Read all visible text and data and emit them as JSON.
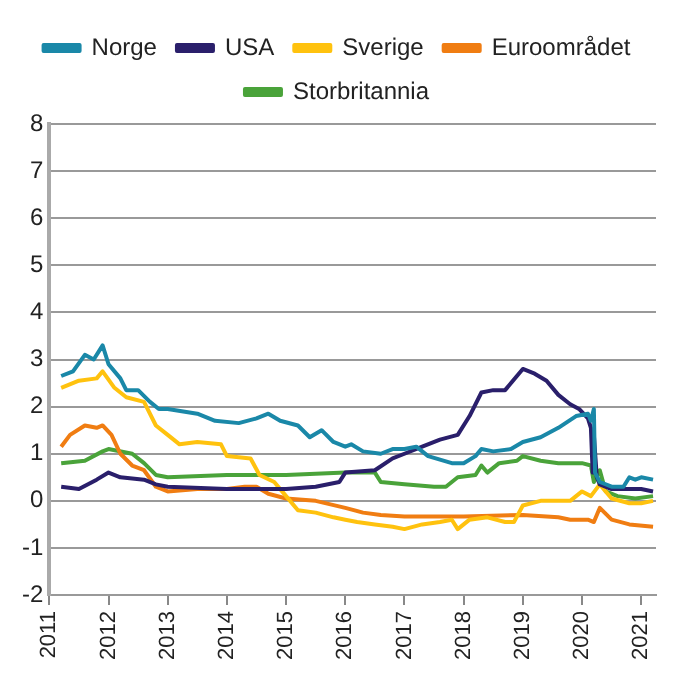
{
  "chart_data": {
    "type": "line",
    "xlim": [
      2011,
      2021.25
    ],
    "xticks": [
      2011,
      2012,
      2013,
      2014,
      2015,
      2016,
      2017,
      2018,
      2019,
      2020,
      2021
    ],
    "ylim": [
      -2,
      8
    ],
    "yticks": [
      -2,
      -1,
      0,
      1,
      2,
      3,
      4,
      5,
      6,
      7,
      8
    ],
    "grid": "y",
    "legend": "top",
    "marker": "none",
    "line_style": "solid",
    "series": [
      {
        "name": "Norge",
        "color": "#1a88a8",
        "x": [
          2011.2,
          2011.4,
          2011.6,
          2011.75,
          2011.9,
          2012.0,
          2012.2,
          2012.3,
          2012.5,
          2012.7,
          2012.85,
          2013,
          2013.5,
          2013.8,
          2014.2,
          2014.5,
          2014.7,
          2014.9,
          2015.2,
          2015.4,
          2015.6,
          2015.8,
          2016,
          2016.1,
          2016.3,
          2016.6,
          2016.8,
          2017,
          2017.2,
          2017.4,
          2017.8,
          2018,
          2018.2,
          2018.3,
          2018.5,
          2018.8,
          2019,
          2019.3,
          2019.6,
          2019.9,
          2020.1,
          2020.15,
          2020.2,
          2020.22,
          2020.3,
          2020.5,
          2020.7,
          2020.8,
          2020.9,
          2021,
          2021.2
        ],
        "values": [
          2.65,
          2.75,
          3.1,
          3.0,
          3.3,
          2.9,
          2.6,
          2.35,
          2.35,
          2.1,
          1.95,
          1.95,
          1.85,
          1.7,
          1.65,
          1.75,
          1.85,
          1.7,
          1.6,
          1.35,
          1.5,
          1.25,
          1.15,
          1.2,
          1.05,
          1.0,
          1.1,
          1.1,
          1.15,
          0.95,
          0.8,
          0.8,
          0.95,
          1.1,
          1.05,
          1.1,
          1.25,
          1.35,
          1.55,
          1.8,
          1.85,
          1.7,
          1.95,
          0.6,
          0.4,
          0.3,
          0.3,
          0.5,
          0.45,
          0.5,
          0.45
        ]
      },
      {
        "name": "USA",
        "color": "#2a1f6b",
        "x": [
          2011.2,
          2011.5,
          2011.8,
          2012,
          2012.2,
          2012.6,
          2012.8,
          2013,
          2014,
          2015,
          2015.5,
          2015.9,
          2016,
          2016.5,
          2016.8,
          2017,
          2017.3,
          2017.6,
          2017.9,
          2018.1,
          2018.3,
          2018.5,
          2018.7,
          2018.9,
          2019,
          2019.2,
          2019.4,
          2019.6,
          2019.8,
          2019.95,
          2020.1,
          2020.15,
          2020.18,
          2020.2,
          2020.25,
          2020.3,
          2020.5,
          2021,
          2021.2
        ],
        "values": [
          0.3,
          0.25,
          0.45,
          0.6,
          0.5,
          0.45,
          0.35,
          0.3,
          0.25,
          0.25,
          0.3,
          0.4,
          0.6,
          0.65,
          0.9,
          1.0,
          1.15,
          1.3,
          1.4,
          1.8,
          2.3,
          2.35,
          2.35,
          2.65,
          2.8,
          2.7,
          2.55,
          2.25,
          2.05,
          1.95,
          1.75,
          1.55,
          0.6,
          1.4,
          0.5,
          0.35,
          0.25,
          0.25,
          0.2
        ]
      },
      {
        "name": "Sverige",
        "color": "#ffc20e",
        "x": [
          2011.2,
          2011.5,
          2011.8,
          2011.9,
          2012.1,
          2012.3,
          2012.6,
          2012.8,
          2013,
          2013.2,
          2013.5,
          2013.9,
          2014,
          2014.4,
          2014.55,
          2014.8,
          2015,
          2015.2,
          2015.5,
          2015.8,
          2016,
          2016.2,
          2016.5,
          2016.8,
          2017,
          2017.3,
          2017.6,
          2017.8,
          2017.9,
          2018.1,
          2018.4,
          2018.7,
          2018.85,
          2019,
          2019.3,
          2019.6,
          2019.8,
          2020,
          2020.15,
          2020.3,
          2020.5,
          2020.8,
          2021,
          2021.2
        ],
        "values": [
          2.4,
          2.55,
          2.6,
          2.75,
          2.4,
          2.2,
          2.1,
          1.6,
          1.4,
          1.2,
          1.25,
          1.2,
          0.95,
          0.9,
          0.55,
          0.4,
          0.1,
          -0.2,
          -0.25,
          -0.35,
          -0.4,
          -0.45,
          -0.5,
          -0.55,
          -0.6,
          -0.5,
          -0.45,
          -0.4,
          -0.6,
          -0.4,
          -0.35,
          -0.45,
          -0.45,
          -0.1,
          0,
          0,
          0,
          0.2,
          0.1,
          0.35,
          0.05,
          -0.05,
          -0.05,
          0
        ]
      },
      {
        "name": "Euroområdet",
        "color": "#f07d12",
        "x": [
          2011.2,
          2011.35,
          2011.6,
          2011.8,
          2011.9,
          2012.05,
          2012.2,
          2012.4,
          2012.6,
          2012.8,
          2013,
          2013.5,
          2014,
          2014.3,
          2014.5,
          2014.7,
          2015,
          2015.5,
          2016,
          2016.3,
          2016.6,
          2017,
          2018,
          2019,
          2019.6,
          2019.8,
          2020.1,
          2020.2,
          2020.3,
          2020.5,
          2020.8,
          2021.2
        ],
        "values": [
          1.15,
          1.4,
          1.6,
          1.55,
          1.6,
          1.4,
          1.0,
          0.75,
          0.65,
          0.3,
          0.2,
          0.25,
          0.25,
          0.3,
          0.3,
          0.15,
          0.05,
          0,
          -0.15,
          -0.25,
          -0.3,
          -0.33,
          -0.33,
          -0.3,
          -0.35,
          -0.4,
          -0.4,
          -0.45,
          -0.15,
          -0.4,
          -0.5,
          -0.55
        ]
      },
      {
        "name": "Storbritannia",
        "color": "#4aa33a",
        "x": [
          2011.2,
          2011.6,
          2011.9,
          2012,
          2012.4,
          2012.6,
          2012.8,
          2013,
          2014,
          2015,
          2016,
          2016.5,
          2016.6,
          2017,
          2017.5,
          2017.7,
          2017.9,
          2018.2,
          2018.3,
          2018.4,
          2018.6,
          2018.9,
          2019,
          2019.3,
          2019.6,
          2020,
          2020.15,
          2020.2,
          2020.3,
          2020.4,
          2020.6,
          2020.9,
          2021.2
        ],
        "values": [
          0.8,
          0.85,
          1.05,
          1.1,
          1.0,
          0.8,
          0.55,
          0.5,
          0.55,
          0.55,
          0.6,
          0.6,
          0.4,
          0.35,
          0.3,
          0.3,
          0.5,
          0.55,
          0.75,
          0.6,
          0.8,
          0.85,
          0.95,
          0.85,
          0.8,
          0.8,
          0.75,
          0.4,
          0.65,
          0.2,
          0.1,
          0.05,
          0.1
        ]
      }
    ]
  }
}
